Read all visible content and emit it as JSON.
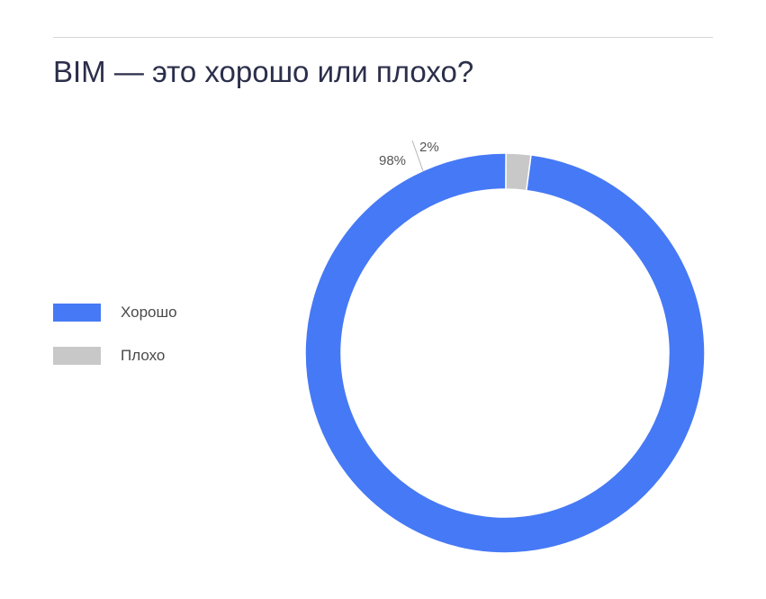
{
  "title": "BIM — это хорошо или плохо?",
  "chart_data": {
    "type": "pie",
    "donut": true,
    "title": "BIM — это хорошо или плохо?",
    "categories": [
      "Хорошо",
      "Плохо"
    ],
    "values": [
      98,
      2
    ],
    "colors": [
      "#4679f5",
      "#c8c8c8"
    ],
    "data_labels": [
      "98%",
      "2%"
    ],
    "legend_position": "left"
  }
}
